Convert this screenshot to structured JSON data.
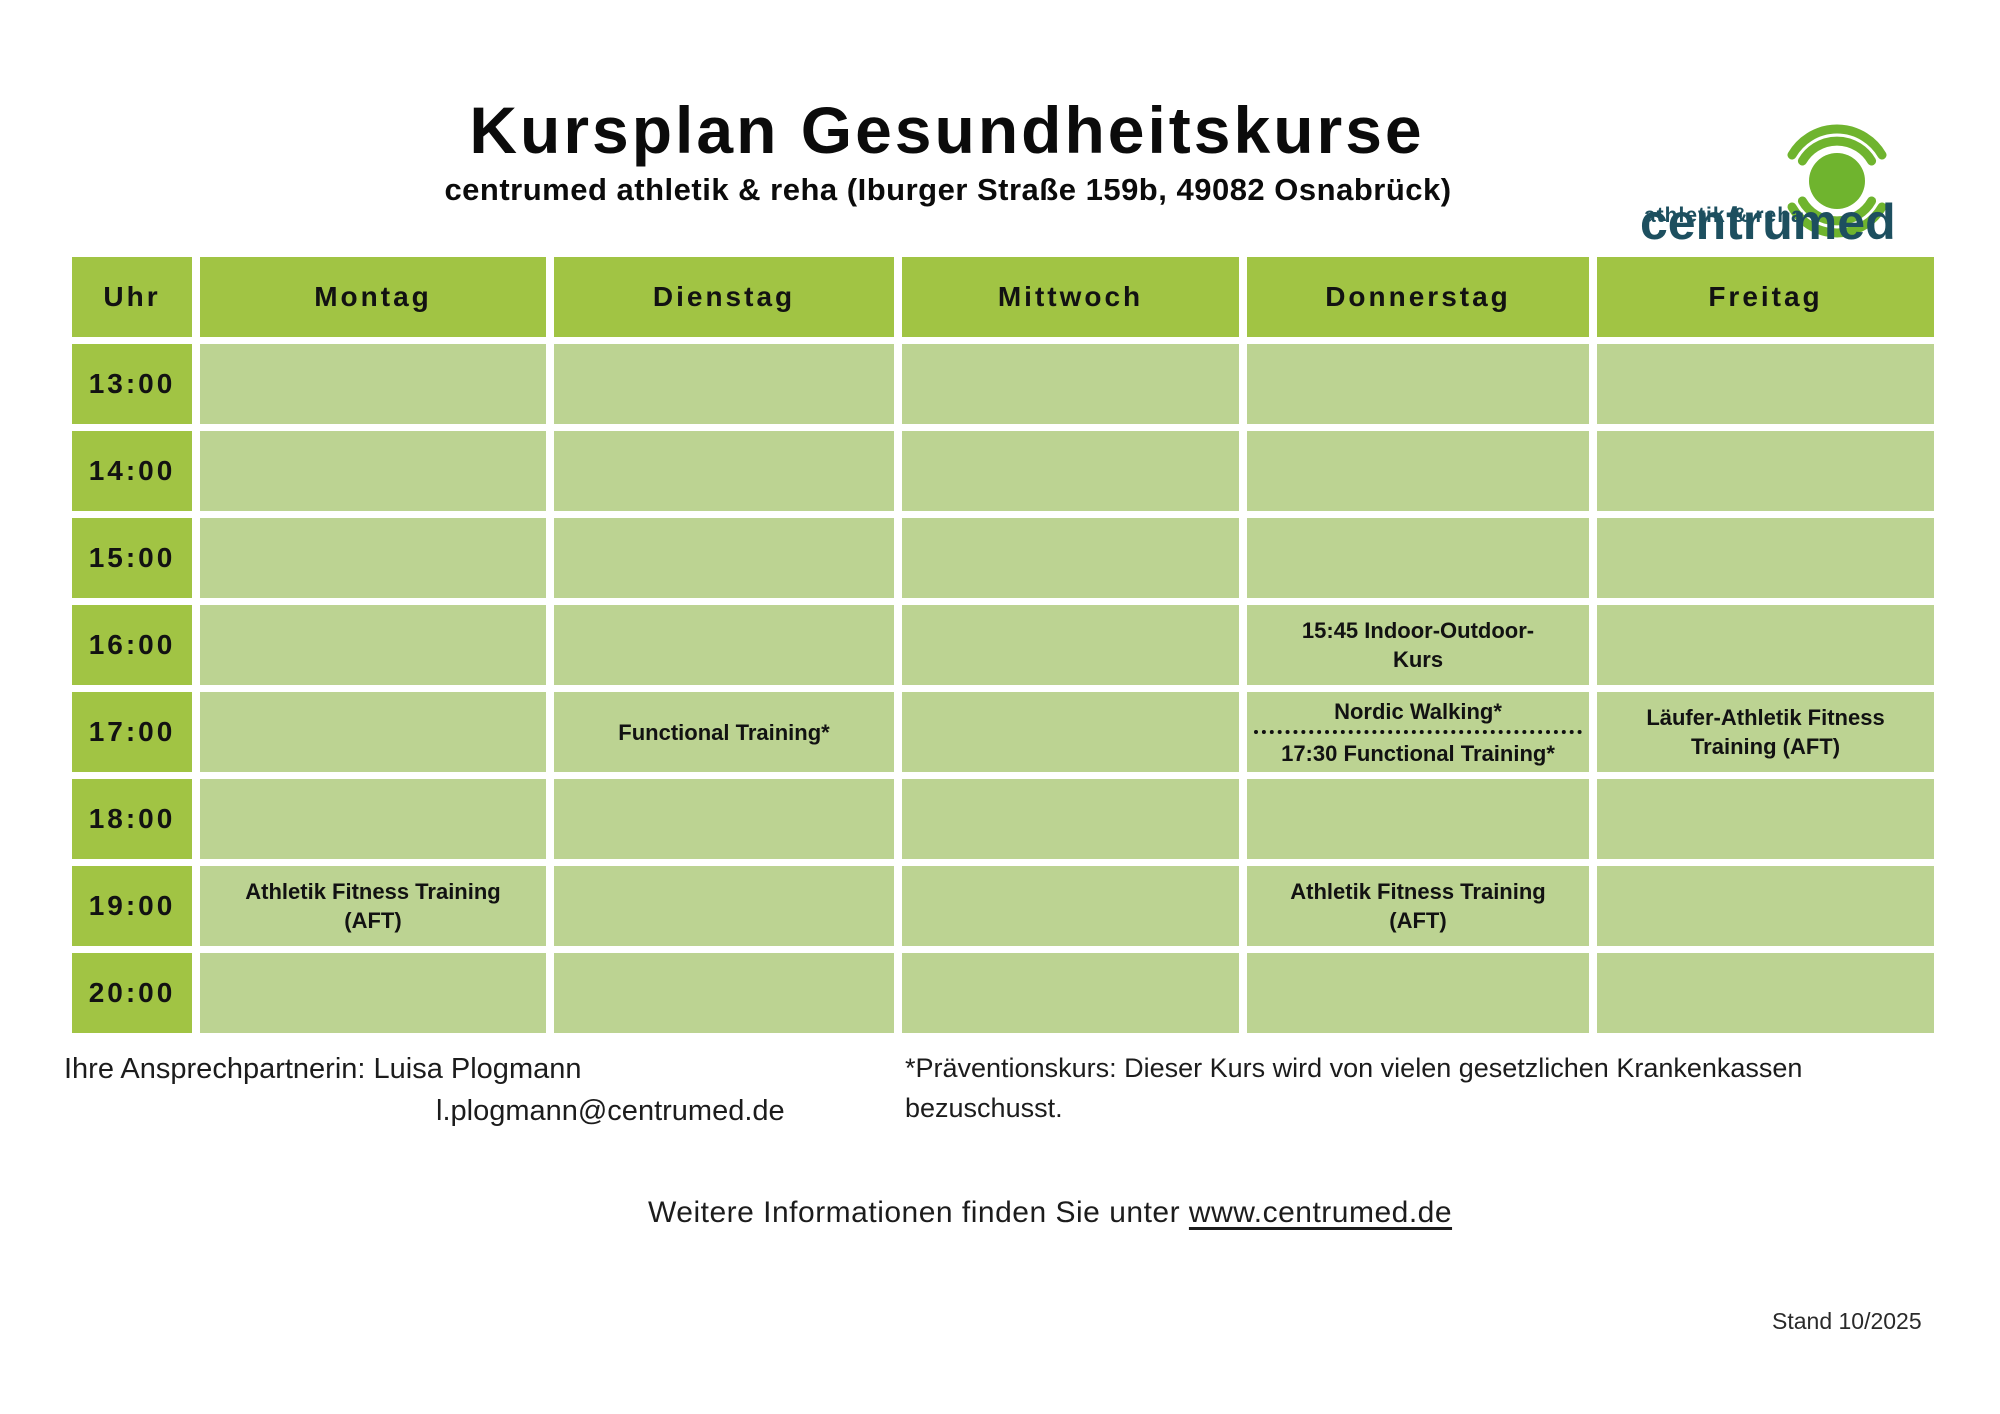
{
  "page": {
    "title": "Kursplan Gesundheitskurse",
    "subtitle": "centrumed athletik & reha (Iburger Straße 159b, 49082 Osnabrück)"
  },
  "logo": {
    "wordmark": "centrumed",
    "tagline": "athletik & reha"
  },
  "colors": {
    "header_green": "#a1c444",
    "cell_green": "#bcd392",
    "logo_teal": "#1d4f5f",
    "logo_green": "#6fb42e"
  },
  "schedule": {
    "time_header": "Uhr",
    "days": [
      "Montag",
      "Dienstag",
      "Mittwoch",
      "Donnerstag",
      "Freitag"
    ],
    "times": [
      "13:00",
      "14:00",
      "15:00",
      "16:00",
      "17:00",
      "18:00",
      "19:00",
      "20:00"
    ],
    "entries": [
      {
        "day": "Dienstag",
        "time": "17:00",
        "lines": [
          "Functional Training*"
        ]
      },
      {
        "day": "Donnerstag",
        "time": "16:00",
        "lines": [
          "15:45 Indoor-Outdoor-",
          "Kurs"
        ]
      },
      {
        "day": "Donnerstag",
        "time": "17:00",
        "split": [
          "Nordic Walking*",
          "17:30 Functional Training*"
        ]
      },
      {
        "day": "Freitag",
        "time": "17:00",
        "lines": [
          "Läufer-Athletik Fitness",
          "Training (AFT)"
        ]
      },
      {
        "day": "Montag",
        "time": "19:00",
        "lines": [
          "Athletik Fitness Training",
          "(AFT)"
        ]
      },
      {
        "day": "Donnerstag",
        "time": "19:00",
        "lines": [
          "Athletik Fitness Training",
          "(AFT)"
        ]
      }
    ]
  },
  "footer": {
    "contact_line": "Ihre Ansprechpartnerin: Luisa Plogmann",
    "contact_email": "l.plogmann@centrumed.de",
    "footnote": "*Präventionskurs: Dieser Kurs wird von vielen gesetzlichen Krankenkassen bezuschusst.",
    "info_prefix": "Weitere Informationen finden Sie unter ",
    "info_link": "www.centrumed.de",
    "stand": "Stand 10/2025"
  }
}
